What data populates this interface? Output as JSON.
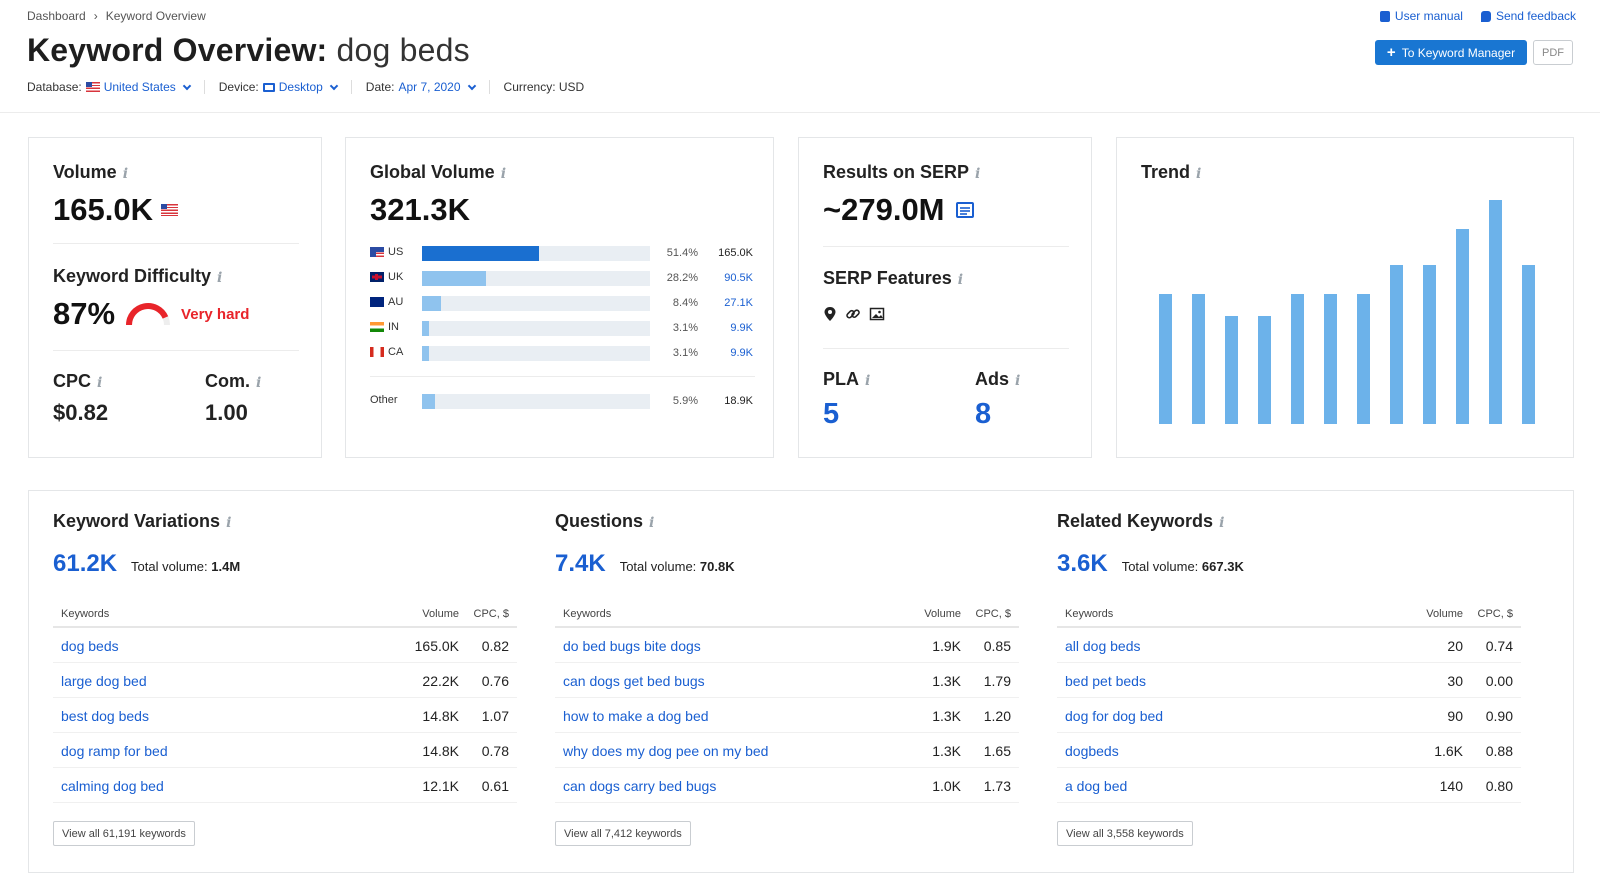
{
  "breadcrumb": [
    "Dashboard",
    "Keyword Overview"
  ],
  "header": {
    "title_prefix": "Keyword Overview:",
    "keyword": "dog beds",
    "user_manual": "User manual",
    "send_feedback": "Send feedback",
    "to_manager": "To Keyword Manager",
    "pdf": "PDF"
  },
  "filters": {
    "database_label": "Database:",
    "database_value": "United States",
    "device_label": "Device:",
    "device_value": "Desktop",
    "date_label": "Date:",
    "date_value": "Apr 7, 2020",
    "currency": "Currency: USD"
  },
  "volume": {
    "label": "Volume",
    "value": "165.0K",
    "kd_label": "Keyword Difficulty",
    "kd_value": "87%",
    "kd_fraction": 0.87,
    "kd_text": "Very hard",
    "cpc_label": "CPC",
    "cpc_value": "$0.82",
    "com_label": "Com.",
    "com_value": "1.00"
  },
  "global_volume": {
    "label": "Global Volume",
    "value": "321.3K",
    "rows": [
      {
        "code": "US",
        "pct": "51.4%",
        "value": "165.0K",
        "share": 0.514,
        "flag": "us"
      },
      {
        "code": "UK",
        "pct": "28.2%",
        "value": "90.5K",
        "share": 0.282,
        "flag": "uk"
      },
      {
        "code": "AU",
        "pct": "8.4%",
        "value": "27.1K",
        "share": 0.084,
        "flag": "au"
      },
      {
        "code": "IN",
        "pct": "3.1%",
        "value": "9.9K",
        "share": 0.031,
        "flag": "in"
      },
      {
        "code": "CA",
        "pct": "3.1%",
        "value": "9.9K",
        "share": 0.031,
        "flag": "ca"
      }
    ],
    "other": {
      "code": "Other",
      "pct": "5.9%",
      "value": "18.9K",
      "share": 0.059
    }
  },
  "serp": {
    "label": "Results on SERP",
    "value": "~279.0M",
    "features_label": "SERP Features",
    "feature_icons": [
      "map-pin-icon",
      "link-icon",
      "image-icon"
    ],
    "pla_label": "PLA",
    "pla_value": "5",
    "ads_label": "Ads",
    "ads_value": "8"
  },
  "trend": {
    "label": "Trend",
    "values": [
      0.58,
      0.58,
      0.48,
      0.48,
      0.58,
      0.58,
      0.58,
      0.71,
      0.71,
      0.87,
      1.0,
      0.71
    ]
  },
  "keyword_variations": {
    "title": "Keyword Variations",
    "count": "61.2K",
    "total_label": "Total volume:",
    "total_value": "1.4M",
    "headers": [
      "Keywords",
      "Volume",
      "CPC, $"
    ],
    "rows": [
      {
        "kw": "dog beds",
        "vol": "165.0K",
        "cpc": "0.82"
      },
      {
        "kw": "large dog bed",
        "vol": "22.2K",
        "cpc": "0.76"
      },
      {
        "kw": "best dog beds",
        "vol": "14.8K",
        "cpc": "1.07"
      },
      {
        "kw": "dog ramp for bed",
        "vol": "14.8K",
        "cpc": "0.78"
      },
      {
        "kw": "calming dog bed",
        "vol": "12.1K",
        "cpc": "0.61"
      }
    ],
    "view_all": "View all 61,191 keywords"
  },
  "questions": {
    "title": "Questions",
    "count": "7.4K",
    "total_label": "Total volume:",
    "total_value": "70.8K",
    "headers": [
      "Keywords",
      "Volume",
      "CPC, $"
    ],
    "rows": [
      {
        "kw": "do bed bugs bite dogs",
        "vol": "1.9K",
        "cpc": "0.85"
      },
      {
        "kw": "can dogs get bed bugs",
        "vol": "1.3K",
        "cpc": "1.79"
      },
      {
        "kw": "how to make a dog bed",
        "vol": "1.3K",
        "cpc": "1.20"
      },
      {
        "kw": "why does my dog pee on my bed",
        "vol": "1.3K",
        "cpc": "1.65"
      },
      {
        "kw": "can dogs carry bed bugs",
        "vol": "1.0K",
        "cpc": "1.73"
      }
    ],
    "view_all": "View all 7,412 keywords"
  },
  "related": {
    "title": "Related Keywords",
    "count": "3.6K",
    "total_label": "Total volume:",
    "total_value": "667.3K",
    "headers": [
      "Keywords",
      "Volume",
      "CPC, $"
    ],
    "rows": [
      {
        "kw": "all dog beds",
        "vol": "20",
        "cpc": "0.74"
      },
      {
        "kw": "bed pet beds",
        "vol": "30",
        "cpc": "0.00"
      },
      {
        "kw": "dog for dog bed",
        "vol": "90",
        "cpc": "0.90"
      },
      {
        "kw": "dogbeds",
        "vol": "1.6K",
        "cpc": "0.88"
      },
      {
        "kw": "a dog bed",
        "vol": "140",
        "cpc": "0.80"
      }
    ],
    "view_all": "View all 3,558 keywords"
  },
  "colors": {
    "accent": "#1a5fd1",
    "bar_us": "#1a6fd0",
    "bar_other": "#8fc3ee",
    "trend": "#6cb2ea",
    "difficulty": "#e8242a"
  }
}
